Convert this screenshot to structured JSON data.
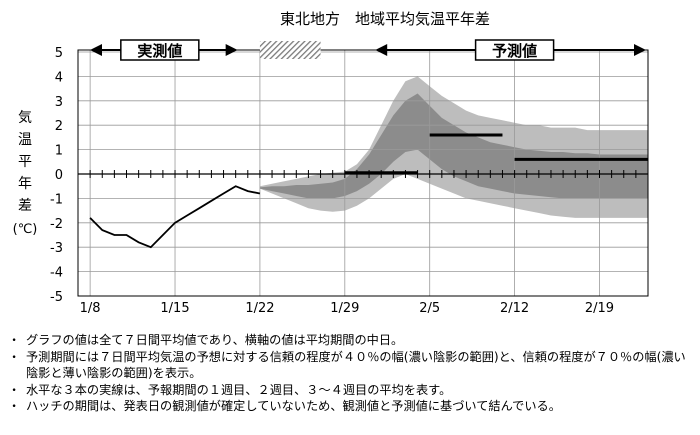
{
  "chart_data": {
    "type": "line",
    "title": "東北地方　地域平均気温平年差",
    "ylabel": "気温平年差(℃)",
    "ylabel_chars": [
      "気",
      "温",
      "平",
      "年",
      "差"
    ],
    "ylabel_unit": "(℃)",
    "xlabel": "",
    "ylim": [
      -5,
      5
    ],
    "yticks": [
      5,
      4,
      3,
      2,
      1,
      0,
      -1,
      -2,
      -3,
      -4,
      -5
    ],
    "xlim": [
      "1/7",
      "2/23"
    ],
    "xticks": [
      "1/8",
      "1/15",
      "1/22",
      "1/29",
      "2/5",
      "2/12",
      "2/19"
    ],
    "grid": true,
    "period_labels": {
      "observed": "実測値",
      "forecast": "予測値",
      "observed_range": [
        "1/7",
        "1/20"
      ],
      "hatch_range": [
        "1/22",
        "1/27"
      ],
      "forecast_range": [
        "2/1",
        "2/23"
      ]
    },
    "observed": {
      "x": [
        "1/8",
        "1/9",
        "1/10",
        "1/11",
        "1/12",
        "1/13",
        "1/14",
        "1/15",
        "1/16",
        "1/17",
        "1/18",
        "1/19",
        "1/20",
        "1/21",
        "1/22"
      ],
      "y": [
        -1.8,
        -2.3,
        -2.5,
        -2.5,
        -2.8,
        -3.0,
        -2.5,
        -2.0,
        -1.7,
        -1.4,
        -1.1,
        -0.8,
        -0.5,
        -0.7,
        -0.8
      ]
    },
    "forecast_dates": [
      "1/22",
      "1/23",
      "1/24",
      "1/25",
      "1/26",
      "1/27",
      "1/28",
      "1/29",
      "1/30",
      "1/31",
      "2/1",
      "2/2",
      "2/3",
      "2/4",
      "2/5",
      "2/6",
      "2/7",
      "2/8",
      "2/9",
      "2/10",
      "2/11",
      "2/12",
      "2/13",
      "2/14",
      "2/15",
      "2/16",
      "2/17",
      "2/18",
      "2/19",
      "2/20",
      "2/21",
      "2/22",
      "2/23"
    ],
    "band_70": {
      "upper": [
        -0.5,
        -0.4,
        -0.3,
        -0.2,
        -0.1,
        0.0,
        0.05,
        0.1,
        0.4,
        1.0,
        2.0,
        3.0,
        3.8,
        4.0,
        3.6,
        3.2,
        2.9,
        2.6,
        2.4,
        2.3,
        2.2,
        2.1,
        2.0,
        2.0,
        1.9,
        1.9,
        1.9,
        1.8,
        1.8,
        1.8,
        1.8,
        1.8,
        1.8
      ],
      "lower": [
        -0.6,
        -0.8,
        -1.0,
        -1.2,
        -1.4,
        -1.5,
        -1.55,
        -1.5,
        -1.3,
        -1.0,
        -0.6,
        -0.2,
        0.0,
        -0.2,
        -0.4,
        -0.6,
        -0.8,
        -1.0,
        -1.1,
        -1.2,
        -1.3,
        -1.4,
        -1.5,
        -1.6,
        -1.7,
        -1.75,
        -1.8,
        -1.8,
        -1.8,
        -1.8,
        -1.8,
        -1.8,
        -1.8
      ]
    },
    "band_40": {
      "upper": [
        -0.55,
        -0.5,
        -0.5,
        -0.45,
        -0.45,
        -0.4,
        -0.35,
        -0.2,
        0.2,
        0.8,
        1.6,
        2.4,
        3.0,
        3.3,
        2.8,
        2.3,
        2.0,
        1.7,
        1.5,
        1.3,
        1.2,
        1.1,
        1.0,
        0.95,
        0.9,
        0.9,
        0.85,
        0.85,
        0.8,
        0.8,
        0.8,
        0.8,
        0.8
      ],
      "lower": [
        -0.6,
        -0.7,
        -0.8,
        -0.9,
        -1.0,
        -1.0,
        -1.0,
        -0.9,
        -0.7,
        -0.4,
        0.0,
        0.5,
        0.9,
        1.0,
        0.6,
        0.2,
        -0.1,
        -0.3,
        -0.5,
        -0.6,
        -0.7,
        -0.8,
        -0.85,
        -0.9,
        -0.95,
        -1.0,
        -1.0,
        -1.0,
        -1.0,
        -1.0,
        -1.0,
        -1.0,
        -1.0
      ]
    },
    "weekly_means": [
      {
        "period": "1週目",
        "start": "1/29",
        "end": "2/4",
        "value": 0.05
      },
      {
        "period": "2週目",
        "start": "2/5",
        "end": "2/11",
        "value": 1.6
      },
      {
        "period": "3～4週目",
        "start": "2/12",
        "end": "2/23",
        "value": 0.6
      }
    ],
    "colors": {
      "band_70": "#bdbdbd",
      "band_40": "#8c8c8c",
      "hatch": "#7a7a7a",
      "line": "#000000",
      "grid": "#9a9a9a"
    }
  },
  "notes": [
    "グラフの値は全て７日間平均値であり、横軸の値は平均期間の中日。",
    "予測期間には７日間平均気温の予想に対する信頼の程度が４０％の幅(濃い陰影の範囲)と、信頼の程度が７０％の幅(濃い陰影と薄い陰影の範囲)を表示。",
    "水平な３本の実線は、予報期間の１週目、２週目、３～４週目の平均を表す。",
    "ハッチの期間は、発表日の観測値が確定していないため、観測値と予測値に基づいて結んでいる。"
  ]
}
